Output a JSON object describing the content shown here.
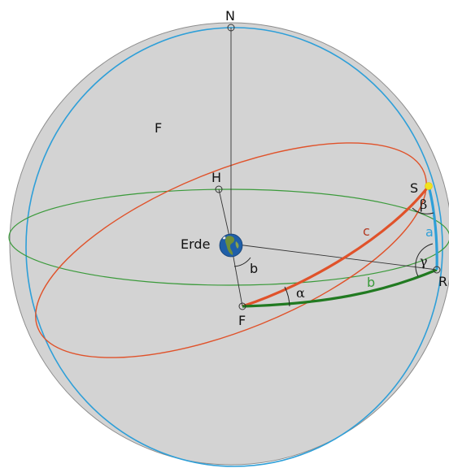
{
  "diagram": {
    "labels": {
      "north": "N",
      "south_point": "S",
      "horizon_point": "H",
      "foot_point": "F",
      "sphere_label": "F",
      "ref_point": "R",
      "earth": "Erde",
      "angle_center_b": "b",
      "arc_a": "a",
      "arc_b": "b",
      "arc_c": "c",
      "alpha": "α",
      "beta": "β",
      "gamma": "γ"
    },
    "colors": {
      "sphere_fill": "#d3d3d3",
      "sphere_outline": "#8c8c8c",
      "meridian_blue": "#2e9fd8",
      "equator_green": "#3a9a3a",
      "arc_green": "#217a21",
      "ecliptic_red": "#e0522a",
      "sun_yellow": "#f2e21c",
      "label_a": "#2e9fd8",
      "label_b": "#3a9a3a",
      "label_c": "#b33a22"
    }
  }
}
